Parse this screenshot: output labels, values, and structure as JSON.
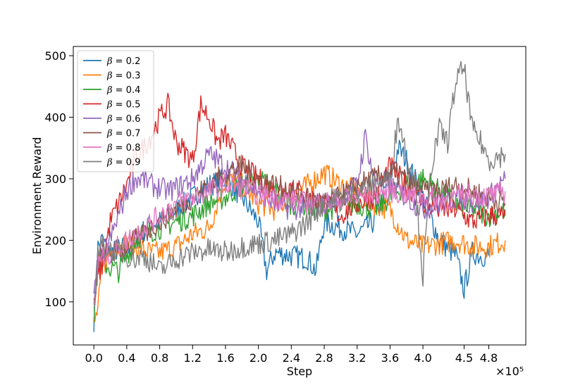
{
  "chart_data": {
    "type": "line",
    "xlabel": "Step",
    "ylabel": "Environment Reward",
    "x_offset_label": "×10⁵",
    "x_multiplier": 100000,
    "xlim": [
      -0.25,
      5.25
    ],
    "ylim": [
      30,
      515
    ],
    "xticks": [
      0.0,
      0.4,
      0.8,
      1.2,
      1.6,
      2.0,
      2.4,
      2.8,
      3.2,
      3.6,
      4.0,
      4.5,
      4.8
    ],
    "xtick_labels": [
      "0.0",
      "0.4",
      "0.8",
      "1.2",
      "1.6",
      "2.0",
      "2.4",
      "2.8",
      "3.2",
      "3.6",
      "4.0",
      "4.5",
      "4.8"
    ],
    "yticks": [
      100,
      200,
      300,
      400,
      500
    ],
    "ytick_labels": [
      "100",
      "200",
      "300",
      "400",
      "500"
    ],
    "legend_position": "upper-left",
    "series": [
      {
        "name": "β = 0.2",
        "color": "#1f77b4",
        "x": [
          0.0,
          0.05,
          0.1,
          0.2,
          0.3,
          0.4,
          0.5,
          0.6,
          0.7,
          0.8,
          0.9,
          1.0,
          1.2,
          1.4,
          1.6,
          1.8,
          2.0,
          2.1,
          2.2,
          2.4,
          2.6,
          2.7,
          2.8,
          3.0,
          3.2,
          3.4,
          3.6,
          3.7,
          3.8,
          4.0,
          4.2,
          4.4,
          4.5,
          4.6,
          4.7,
          4.8
        ],
        "y": [
          70,
          190,
          200,
          180,
          185,
          190,
          200,
          215,
          225,
          230,
          240,
          250,
          270,
          290,
          300,
          270,
          230,
          150,
          180,
          175,
          170,
          150,
          230,
          220,
          210,
          230,
          300,
          350,
          330,
          270,
          200,
          175,
          120,
          180,
          175,
          175
        ]
      },
      {
        "name": "β = 0.3",
        "color": "#ff7f0e",
        "x": [
          0.0,
          0.05,
          0.1,
          0.2,
          0.3,
          0.4,
          0.5,
          0.6,
          0.7,
          0.8,
          0.9,
          1.0,
          1.2,
          1.4,
          1.6,
          1.8,
          2.0,
          2.2,
          2.4,
          2.6,
          2.8,
          3.0,
          3.2,
          3.4,
          3.6,
          3.8,
          4.0,
          4.2,
          4.4,
          4.6,
          4.8,
          5.0
        ],
        "y": [
          60,
          90,
          150,
          180,
          190,
          195,
          190,
          185,
          180,
          180,
          185,
          190,
          210,
          220,
          300,
          290,
          260,
          250,
          270,
          290,
          310,
          290,
          280,
          260,
          250,
          200,
          190,
          195,
          200,
          190,
          190,
          200
        ]
      },
      {
        "name": "β = 0.4",
        "color": "#2ca02c",
        "x": [
          0.0,
          0.05,
          0.1,
          0.2,
          0.3,
          0.4,
          0.5,
          0.6,
          0.7,
          0.8,
          0.9,
          1.0,
          1.2,
          1.4,
          1.6,
          1.8,
          2.0,
          2.2,
          2.4,
          2.6,
          2.8,
          3.0,
          3.2,
          3.4,
          3.6,
          3.8,
          4.0,
          4.2,
          4.4,
          4.6,
          4.8,
          5.0
        ],
        "y": [
          80,
          160,
          165,
          155,
          150,
          175,
          200,
          210,
          215,
          220,
          225,
          230,
          240,
          260,
          270,
          290,
          300,
          280,
          260,
          255,
          250,
          255,
          260,
          250,
          270,
          290,
          300,
          280,
          260,
          250,
          240,
          250
        ]
      },
      {
        "name": "β = 0.5",
        "color": "#d62728",
        "x": [
          0.0,
          0.05,
          0.1,
          0.2,
          0.3,
          0.4,
          0.5,
          0.6,
          0.7,
          0.8,
          0.9,
          1.0,
          1.2,
          1.3,
          1.4,
          1.5,
          1.6,
          1.8,
          2.0,
          2.2,
          2.4,
          2.6,
          2.8,
          3.0,
          3.2,
          3.4,
          3.6,
          3.8,
          4.0,
          4.2,
          4.4,
          4.6,
          4.8,
          5.0
        ],
        "y": [
          90,
          140,
          160,
          230,
          260,
          290,
          330,
          350,
          370,
          400,
          420,
          360,
          330,
          420,
          400,
          360,
          370,
          320,
          300,
          280,
          290,
          270,
          260,
          240,
          260,
          270,
          320,
          290,
          260,
          250,
          250,
          230,
          240,
          240
        ]
      },
      {
        "name": "β = 0.6",
        "color": "#9467bd",
        "x": [
          0.0,
          0.05,
          0.1,
          0.2,
          0.3,
          0.4,
          0.5,
          0.6,
          0.7,
          0.8,
          0.9,
          1.0,
          1.2,
          1.4,
          1.5,
          1.6,
          1.8,
          2.0,
          2.2,
          2.4,
          2.6,
          2.8,
          3.0,
          3.2,
          3.3,
          3.4,
          3.6,
          3.8,
          4.0,
          4.2,
          4.4,
          4.6,
          4.8,
          5.0
        ],
        "y": [
          100,
          170,
          180,
          200,
          240,
          280,
          300,
          300,
          290,
          285,
          280,
          285,
          300,
          340,
          330,
          320,
          300,
          280,
          260,
          250,
          255,
          260,
          270,
          290,
          370,
          300,
          290,
          270,
          250,
          260,
          270,
          260,
          270,
          300
        ]
      },
      {
        "name": "β = 0.7",
        "color": "#8c564b",
        "x": [
          0.0,
          0.05,
          0.1,
          0.2,
          0.3,
          0.4,
          0.5,
          0.6,
          0.7,
          0.8,
          0.9,
          1.0,
          1.2,
          1.4,
          1.6,
          1.8,
          2.0,
          2.2,
          2.4,
          2.6,
          2.8,
          3.0,
          3.2,
          3.4,
          3.6,
          3.8,
          4.0,
          4.2,
          4.4,
          4.6,
          4.8,
          5.0
        ],
        "y": [
          80,
          170,
          175,
          180,
          185,
          190,
          200,
          210,
          220,
          230,
          240,
          250,
          270,
          290,
          310,
          320,
          300,
          290,
          280,
          270,
          260,
          270,
          290,
          300,
          310,
          300,
          280,
          280,
          290,
          280,
          270,
          260
        ]
      },
      {
        "name": "β = 0.8",
        "color": "#e377c2",
        "x": [
          0.0,
          0.05,
          0.1,
          0.2,
          0.3,
          0.4,
          0.5,
          0.6,
          0.7,
          0.8,
          0.9,
          1.0,
          1.2,
          1.4,
          1.6,
          1.8,
          2.0,
          2.2,
          2.4,
          2.6,
          2.8,
          3.0,
          3.2,
          3.4,
          3.6,
          3.8,
          4.0,
          4.2,
          4.4,
          4.6,
          4.8,
          5.0
        ],
        "y": [
          90,
          165,
          170,
          180,
          190,
          200,
          210,
          220,
          230,
          240,
          250,
          260,
          270,
          280,
          290,
          285,
          275,
          270,
          265,
          260,
          260,
          265,
          270,
          275,
          280,
          275,
          270,
          265,
          270,
          275,
          270,
          280
        ]
      },
      {
        "name": "β = 0.9",
        "color": "#7f7f7f",
        "x": [
          0.0,
          0.05,
          0.1,
          0.2,
          0.3,
          0.4,
          0.5,
          0.6,
          0.7,
          0.8,
          0.9,
          1.0,
          1.2,
          1.4,
          1.6,
          1.8,
          2.0,
          2.2,
          2.4,
          2.6,
          2.8,
          3.0,
          3.2,
          3.4,
          3.6,
          3.7,
          3.8,
          3.9,
          4.0,
          4.1,
          4.2,
          4.3,
          4.4,
          4.5,
          4.6,
          4.7,
          4.8,
          5.0
        ],
        "y": [
          80,
          180,
          190,
          185,
          180,
          175,
          170,
          175,
          165,
          150,
          160,
          170,
          180,
          185,
          180,
          190,
          195,
          200,
          210,
          230,
          260,
          270,
          280,
          290,
          300,
          400,
          340,
          300,
          140,
          320,
          380,
          360,
          460,
          480,
          380,
          360,
          330,
          340
        ]
      }
    ]
  }
}
